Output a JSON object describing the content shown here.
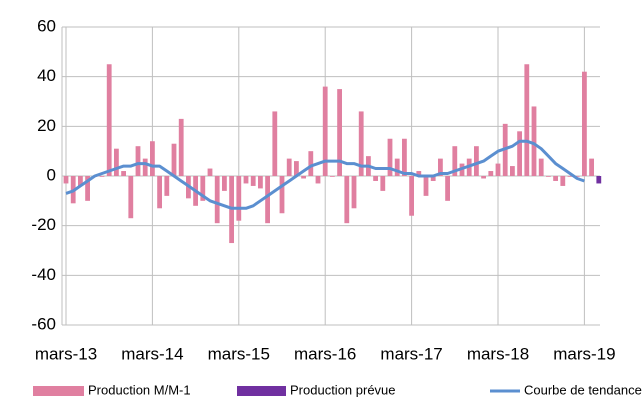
{
  "chart_data": {
    "type": "bar",
    "categories": [
      "mars-13",
      null,
      null,
      null,
      null,
      null,
      null,
      null,
      null,
      null,
      null,
      null,
      "mars-14",
      null,
      null,
      null,
      null,
      null,
      null,
      null,
      null,
      null,
      null,
      null,
      "mars-15",
      null,
      null,
      null,
      null,
      null,
      null,
      null,
      null,
      null,
      null,
      null,
      "mars-16",
      null,
      null,
      null,
      null,
      null,
      null,
      null,
      null,
      null,
      null,
      null,
      "mars-17",
      null,
      null,
      null,
      null,
      null,
      null,
      null,
      null,
      null,
      null,
      null,
      "mars-18",
      null,
      null,
      null,
      null,
      null,
      null,
      null,
      null,
      null,
      null,
      null,
      "mars-19",
      null,
      null
    ],
    "series": [
      {
        "name": "Production M/M-1",
        "color": "#e07fa0",
        "kind": "bar",
        "values": [
          -3,
          -11,
          -4,
          -10,
          0,
          0,
          45,
          11,
          2,
          -17,
          12,
          7,
          14,
          -13,
          -8,
          13,
          23,
          -9,
          -12,
          -10,
          3,
          -19,
          -6,
          -27,
          -18,
          -3,
          -4,
          -5,
          -19,
          26,
          -15,
          7,
          6,
          -1,
          10,
          -3,
          36,
          0,
          35,
          -19,
          -13,
          26,
          8,
          -2,
          -6,
          15,
          7,
          15,
          -16,
          2,
          -8,
          -2,
          7,
          -10,
          12,
          5,
          7,
          12,
          -1,
          2,
          5,
          21,
          4,
          18,
          45,
          28,
          7,
          0,
          -2,
          -4,
          0,
          0,
          42,
          7,
          null
        ]
      },
      {
        "name": "Production prévue",
        "color": "#7030a0",
        "kind": "bar",
        "values": [
          null,
          null,
          null,
          null,
          null,
          null,
          null,
          null,
          null,
          null,
          null,
          null,
          null,
          null,
          null,
          null,
          null,
          null,
          null,
          null,
          null,
          null,
          null,
          null,
          null,
          null,
          null,
          null,
          null,
          null,
          null,
          null,
          null,
          null,
          null,
          null,
          null,
          null,
          null,
          null,
          null,
          null,
          null,
          null,
          null,
          null,
          null,
          null,
          null,
          null,
          null,
          null,
          null,
          null,
          null,
          null,
          null,
          null,
          null,
          null,
          null,
          null,
          null,
          null,
          null,
          null,
          null,
          null,
          null,
          null,
          null,
          null,
          null,
          null,
          -3
        ]
      },
      {
        "name": "Courbe de tendance",
        "color": "#5b8fd0",
        "kind": "line",
        "values": [
          -7,
          -6,
          -4,
          -2,
          0,
          1,
          2,
          3,
          4,
          4,
          5,
          5,
          4,
          4,
          2,
          0,
          -2,
          -4,
          -6,
          -8,
          -10,
          -11,
          -12,
          -13,
          -13,
          -13,
          -12,
          -10,
          -8,
          -6,
          -4,
          -2,
          0,
          2,
          4,
          5,
          6,
          6,
          6,
          5,
          5,
          4,
          4,
          3,
          3,
          3,
          2,
          1,
          1,
          0,
          0,
          0,
          1,
          1,
          2,
          3,
          4,
          5,
          6,
          8,
          10,
          11,
          12,
          14,
          14,
          13,
          11,
          8,
          5,
          3,
          1,
          -1,
          -2,
          null,
          null
        ]
      }
    ],
    "ylim": [
      -60,
      60
    ],
    "yticks": [
      -60,
      -40,
      -20,
      0,
      20,
      40,
      60
    ],
    "grid": true,
    "legend": "bottom"
  }
}
